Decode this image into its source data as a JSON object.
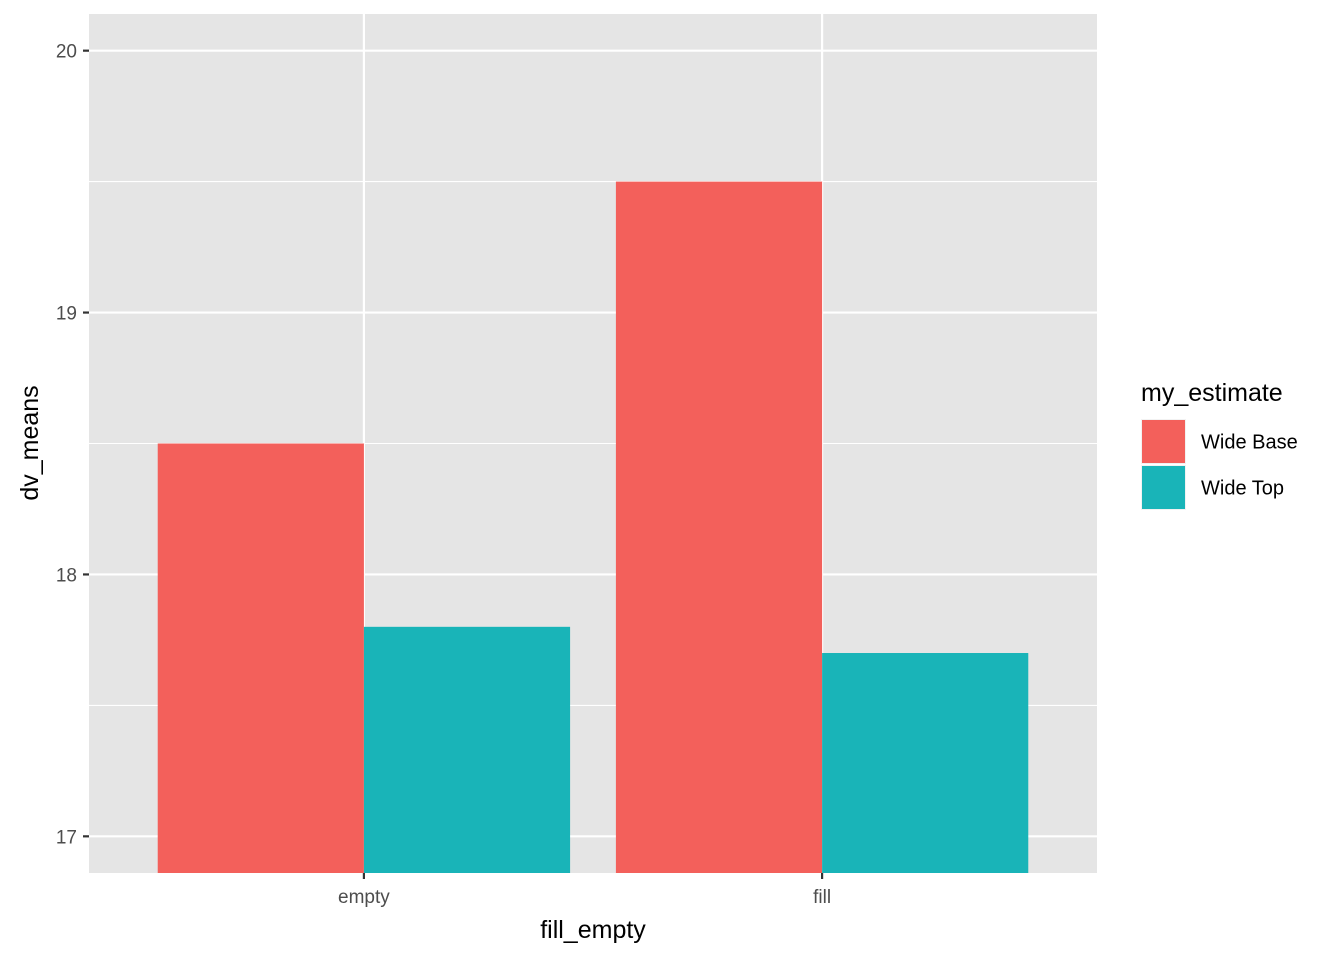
{
  "chart_data": {
    "type": "bar",
    "xlabel": "fill_empty",
    "ylabel": "dv_means",
    "categories": [
      "empty",
      "fill"
    ],
    "series": [
      {
        "name": "Wide Base",
        "values": [
          18.5,
          19.5
        ],
        "color": "#F3605B"
      },
      {
        "name": "Wide Top",
        "values": [
          17.8,
          17.7
        ],
        "color": "#19B4B8"
      }
    ],
    "ylim": [
      16.86,
      20.14
    ],
    "yticks": [
      "17",
      "18",
      "19",
      "20"
    ],
    "grid": true,
    "panel_background": "#E5E5E5",
    "legend": {
      "title": "my_estimate",
      "position": "right"
    }
  }
}
